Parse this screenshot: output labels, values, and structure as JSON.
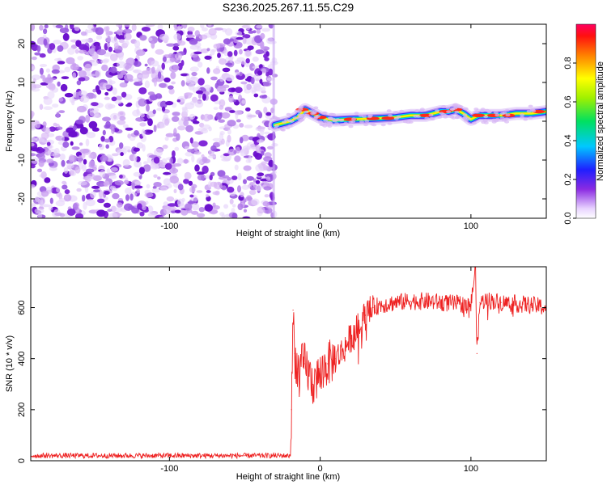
{
  "title": "S236.2025.267.11.55.C29",
  "colors": {
    "noise_purple": "#7a1fd6",
    "noise_light": "#d9b8f5",
    "snr_line": "#ee2222",
    "frame": "#000000"
  },
  "chart_data": [
    {
      "type": "heatmap",
      "name": "spectrogram",
      "xlabel": "Height of straight line (km)",
      "ylabel": "Frequency (Hz)",
      "xlim": [
        -192,
        150
      ],
      "ylim": [
        -25,
        25
      ],
      "xticks": [
        -100,
        0,
        100
      ],
      "yticks": [
        -20,
        -10,
        0,
        10,
        20
      ],
      "noise_region": {
        "x_from": -192,
        "x_to": -30,
        "description_level": "low"
      },
      "signal_track": {
        "x": [
          -30,
          -25,
          -20,
          -15,
          -10,
          -5,
          0,
          5,
          10,
          20,
          30,
          40,
          50,
          60,
          70,
          80,
          85,
          90,
          95,
          100,
          105,
          110,
          120,
          130,
          140,
          150
        ],
        "freq": [
          -1,
          -0.5,
          0,
          1,
          3,
          2,
          1,
          0.5,
          0.3,
          0.5,
          0.6,
          0.8,
          1.0,
          1.5,
          1.5,
          2.5,
          2.5,
          3.0,
          2.0,
          0.5,
          1.5,
          1.5,
          1.5,
          2.0,
          2.0,
          2.5
        ]
      },
      "colorbar": {
        "label": "Normalized spectral amplitude",
        "range": [
          0,
          1
        ],
        "ticks": [
          0.0,
          0.2,
          0.4,
          0.6,
          0.8
        ]
      }
    },
    {
      "type": "line",
      "name": "snr",
      "xlabel": "Height of straight line (km)",
      "ylabel": "SNR (10 * v/v)",
      "xlim": [
        -192,
        150
      ],
      "ylim": [
        0,
        760
      ],
      "xticks": [
        -100,
        0,
        100
      ],
      "yticks": [
        0,
        200,
        400,
        600
      ],
      "series": [
        {
          "name": "SNR",
          "points": [
            [
              -192,
              20
            ],
            [
              -150,
              20
            ],
            [
              -100,
              20
            ],
            [
              -50,
              20
            ],
            [
              -20,
              20
            ],
            [
              -19,
              200
            ],
            [
              -18,
              590
            ],
            [
              -17,
              420
            ],
            [
              -15,
              360
            ],
            [
              -10,
              380
            ],
            [
              -5,
              300
            ],
            [
              0,
              340
            ],
            [
              5,
              380
            ],
            [
              10,
              400
            ],
            [
              15,
              430
            ],
            [
              20,
              480
            ],
            [
              25,
              520
            ],
            [
              30,
              570
            ],
            [
              35,
              600
            ],
            [
              40,
              610
            ],
            [
              50,
              620
            ],
            [
              60,
              625
            ],
            [
              70,
              625
            ],
            [
              80,
              620
            ],
            [
              90,
              615
            ],
            [
              100,
              610
            ],
            [
              103,
              760
            ],
            [
              104,
              420
            ],
            [
              106,
              620
            ],
            [
              110,
              630
            ],
            [
              120,
              620
            ],
            [
              130,
              615
            ],
            [
              140,
              610
            ],
            [
              150,
              600
            ]
          ]
        }
      ]
    }
  ]
}
